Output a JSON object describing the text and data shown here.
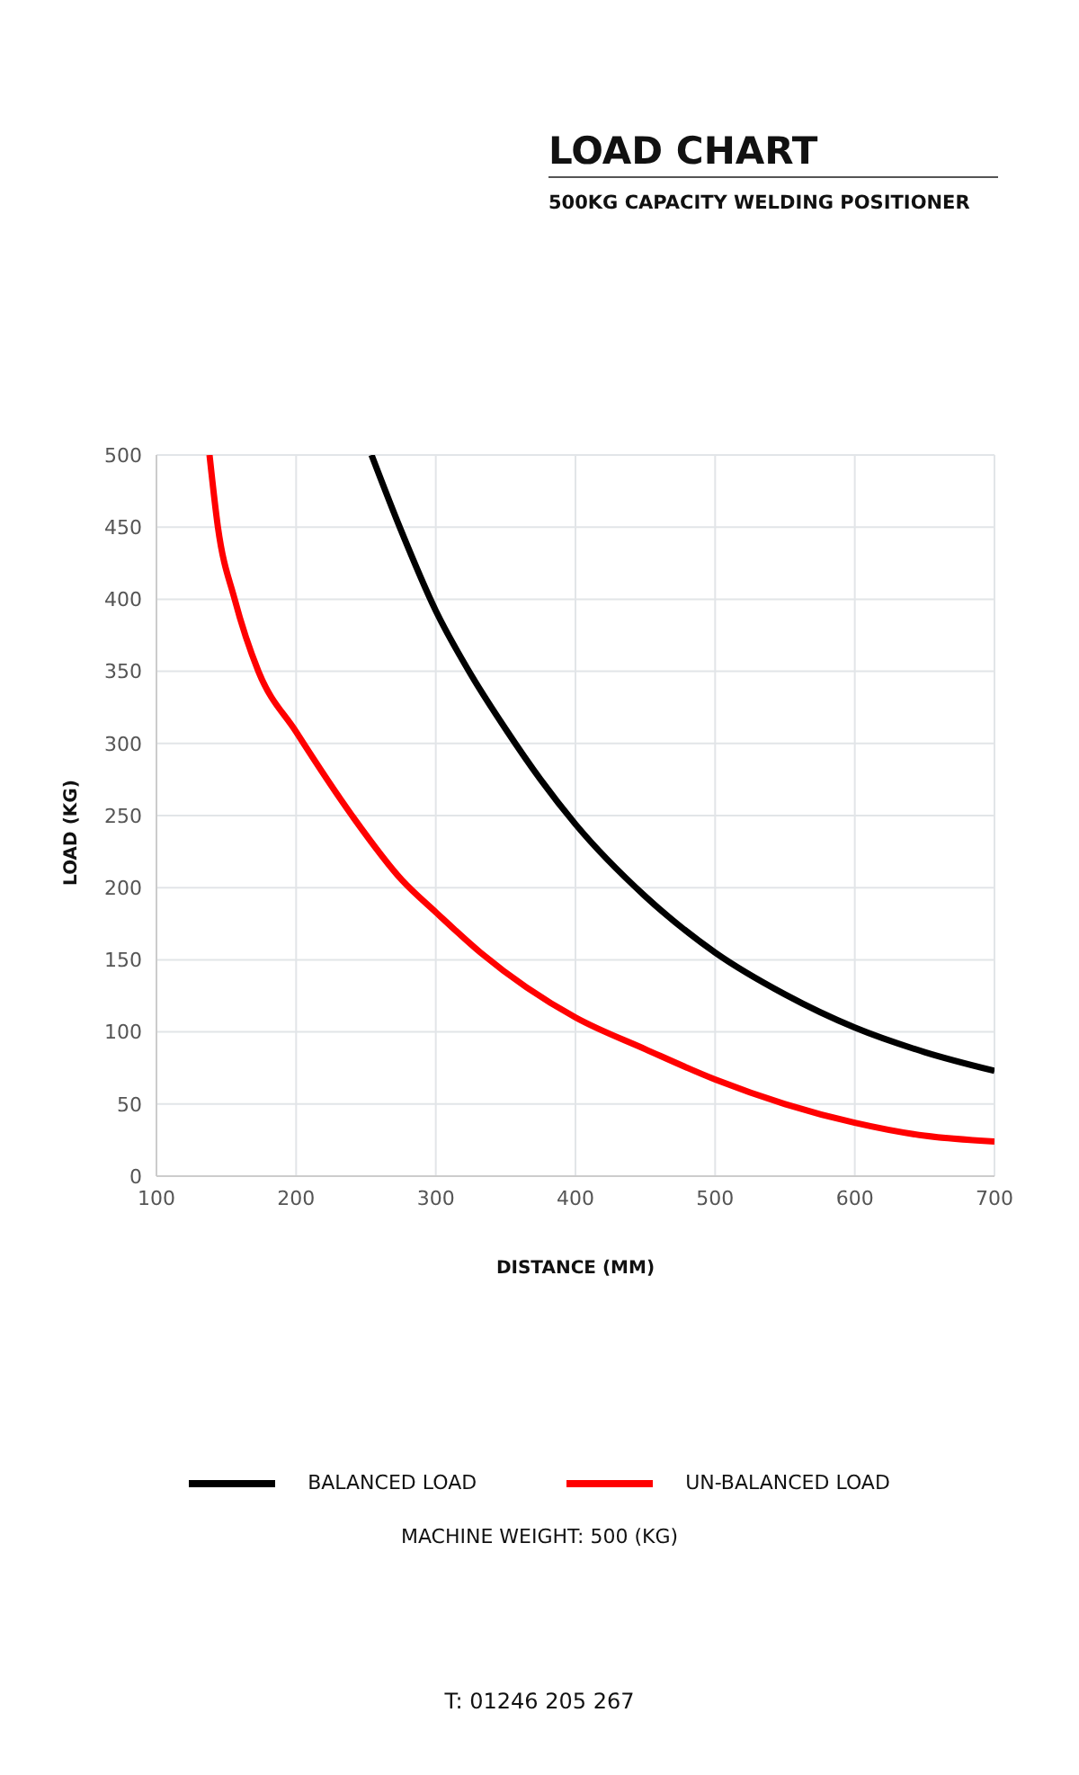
{
  "chart_data": {
    "type": "line",
    "title": "LOAD CHART",
    "subtitle": "500KG CAPACITY WELDING POSITIONER",
    "xlabel": "DISTANCE (MM)",
    "ylabel": "LOAD (KG)",
    "xlim": [
      100,
      700
    ],
    "xticks": [
      100,
      200,
      300,
      400,
      500,
      600,
      700
    ],
    "ylim": [
      0,
      500
    ],
    "yticks": [
      0,
      50,
      100,
      150,
      200,
      250,
      300,
      350,
      400,
      450,
      500
    ],
    "grid": true,
    "legend": "bottom",
    "marker": "none",
    "line_style": "solid",
    "series": [
      {
        "name": "BALANCED LOAD",
        "color": "#000000",
        "x": [
          254,
          275,
          300,
          325,
          350,
          375,
          400,
          450,
          500,
          550,
          600,
          650,
          700
        ],
        "values": [
          500,
          448,
          392,
          348,
          310,
          275,
          244,
          194,
          155,
          126,
          103,
          86,
          73
        ]
      },
      {
        "name": "UN-BALANCED LOAD",
        "color": "#ff0000",
        "x": [
          138,
          144,
          156,
          173,
          200,
          240,
          276,
          300,
          332,
          400,
          450,
          500,
          550,
          600,
          650,
          700
        ],
        "values": [
          500,
          450,
          400,
          350,
          308,
          250,
          205,
          183,
          155,
          110,
          88,
          67,
          50,
          37,
          28,
          24
        ]
      }
    ],
    "annotations": [
      "MACHINE WEIGHT:  500 (KG)",
      "T: 01246 205 267"
    ]
  }
}
